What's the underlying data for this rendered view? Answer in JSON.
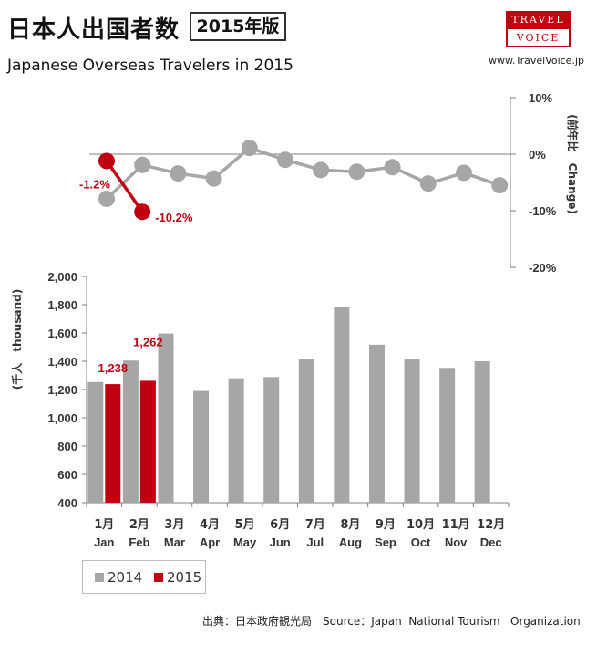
{
  "header": {
    "title": "日本人出国者数",
    "edition": "2015年版",
    "subtitle": "Japanese Overseas Travelers in 2015",
    "logo_top": "TRAVEL",
    "logo_bottom": "VOICE",
    "url": "www.TravelVoice.jp"
  },
  "colors": {
    "y2014": "#a6a6a6",
    "y2015": "#c00010",
    "axis": "#7f7f7f"
  },
  "chart_data": [
    {
      "type": "line",
      "title": "",
      "ylabel": "(前年比　Change)",
      "ylim": [
        -20,
        10
      ],
      "ytick_labels": [
        "10%",
        "0%",
        "-10%",
        "-20%"
      ],
      "categories": [
        "Jan",
        "Feb",
        "Mar",
        "Apr",
        "May",
        "Jun",
        "Jul",
        "Aug",
        "Sep",
        "Oct",
        "Nov",
        "Dec"
      ],
      "series": [
        {
          "name": "2014",
          "values": [
            -7.9,
            -1.9,
            -3.4,
            -4.3,
            1.1,
            -1.0,
            -2.8,
            -3.1,
            -2.3,
            -5.2,
            -3.3,
            -5.5
          ]
        },
        {
          "name": "2015",
          "values": [
            -1.2,
            -10.2,
            null,
            null,
            null,
            null,
            null,
            null,
            null,
            null,
            null,
            null
          ]
        }
      ],
      "data_labels": [
        "-1.2%",
        "-10.2%"
      ]
    },
    {
      "type": "bar",
      "title": "",
      "ylabel": "(千人　thousand)",
      "ylim": [
        400,
        2000
      ],
      "ytick_labels": [
        "2,000",
        "1,800",
        "1,600",
        "1,400",
        "1,200",
        "1,000",
        "800",
        "600",
        "400"
      ],
      "categories_ja": [
        "1月",
        "2月",
        "3月",
        "4月",
        "5月",
        "6月",
        "7月",
        "8月",
        "9月",
        "10月",
        "11月",
        "12月"
      ],
      "categories": [
        "Jan",
        "Feb",
        "Mar",
        "Apr",
        "May",
        "Jun",
        "Jul",
        "Aug",
        "Sep",
        "Oct",
        "Nov",
        "Dec"
      ],
      "series": [
        {
          "name": "2014",
          "values": [
            1253,
            1405,
            1596,
            1190,
            1280,
            1288,
            1415,
            1781,
            1517,
            1415,
            1353,
            1400
          ]
        },
        {
          "name": "2015",
          "values": [
            1238,
            1262,
            null,
            null,
            null,
            null,
            null,
            null,
            null,
            null,
            null,
            null
          ]
        }
      ],
      "data_labels": [
        "1,238",
        "1,262"
      ],
      "legend": "bottom-left"
    }
  ],
  "source": "出典：日本政府観光局　Source：Japan  National Tourism   Organization"
}
